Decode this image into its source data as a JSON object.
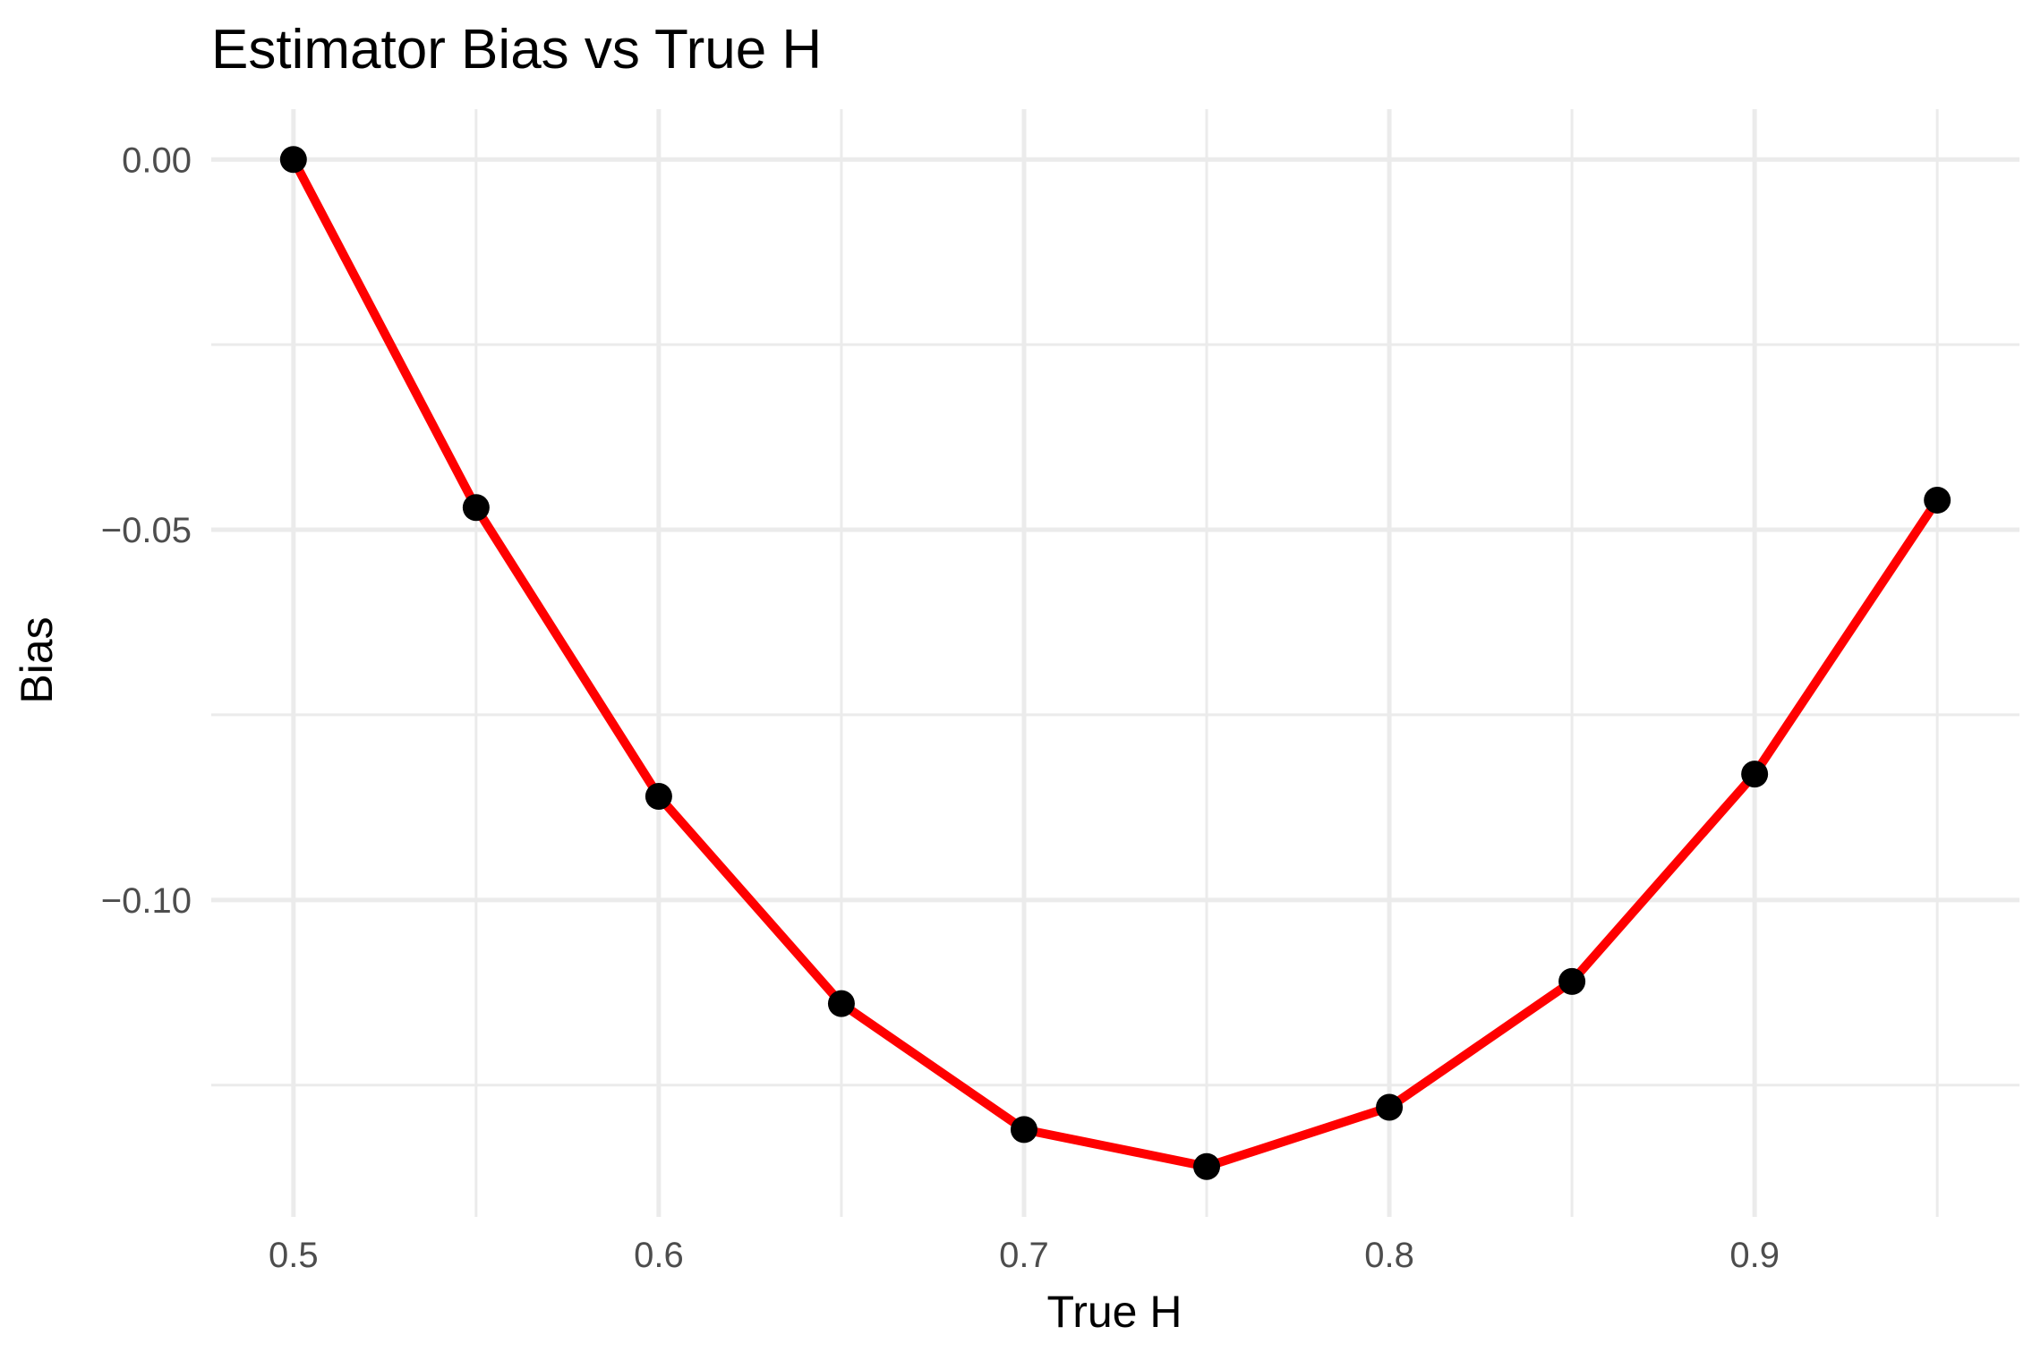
{
  "chart_data": {
    "type": "line",
    "title": "Estimator Bias vs True H",
    "xlabel": "True H",
    "ylabel": "Bias",
    "x": [
      0.5,
      0.55,
      0.6,
      0.65,
      0.7,
      0.75,
      0.8,
      0.85,
      0.9,
      0.95
    ],
    "series": [
      {
        "values": [
          0.0,
          -0.047,
          -0.086,
          -0.114,
          -0.131,
          -0.136,
          -0.128,
          -0.111,
          -0.083,
          -0.046
        ],
        "line_color": "#ff0000",
        "point_color": "#000000"
      }
    ],
    "xticks": [
      0.5,
      0.6,
      0.7,
      0.8,
      0.9
    ],
    "xtick_labels": [
      "0.5",
      "0.6",
      "0.7",
      "0.8",
      "0.9"
    ],
    "yticks": [
      0.0,
      -0.05,
      -0.1
    ],
    "ytick_labels": [
      "0.00",
      "−0.05",
      "−0.10"
    ],
    "xlim": [
      0.4775,
      0.9725
    ],
    "ylim": [
      -0.1428,
      0.0068
    ],
    "grid": true,
    "legend": "none"
  }
}
